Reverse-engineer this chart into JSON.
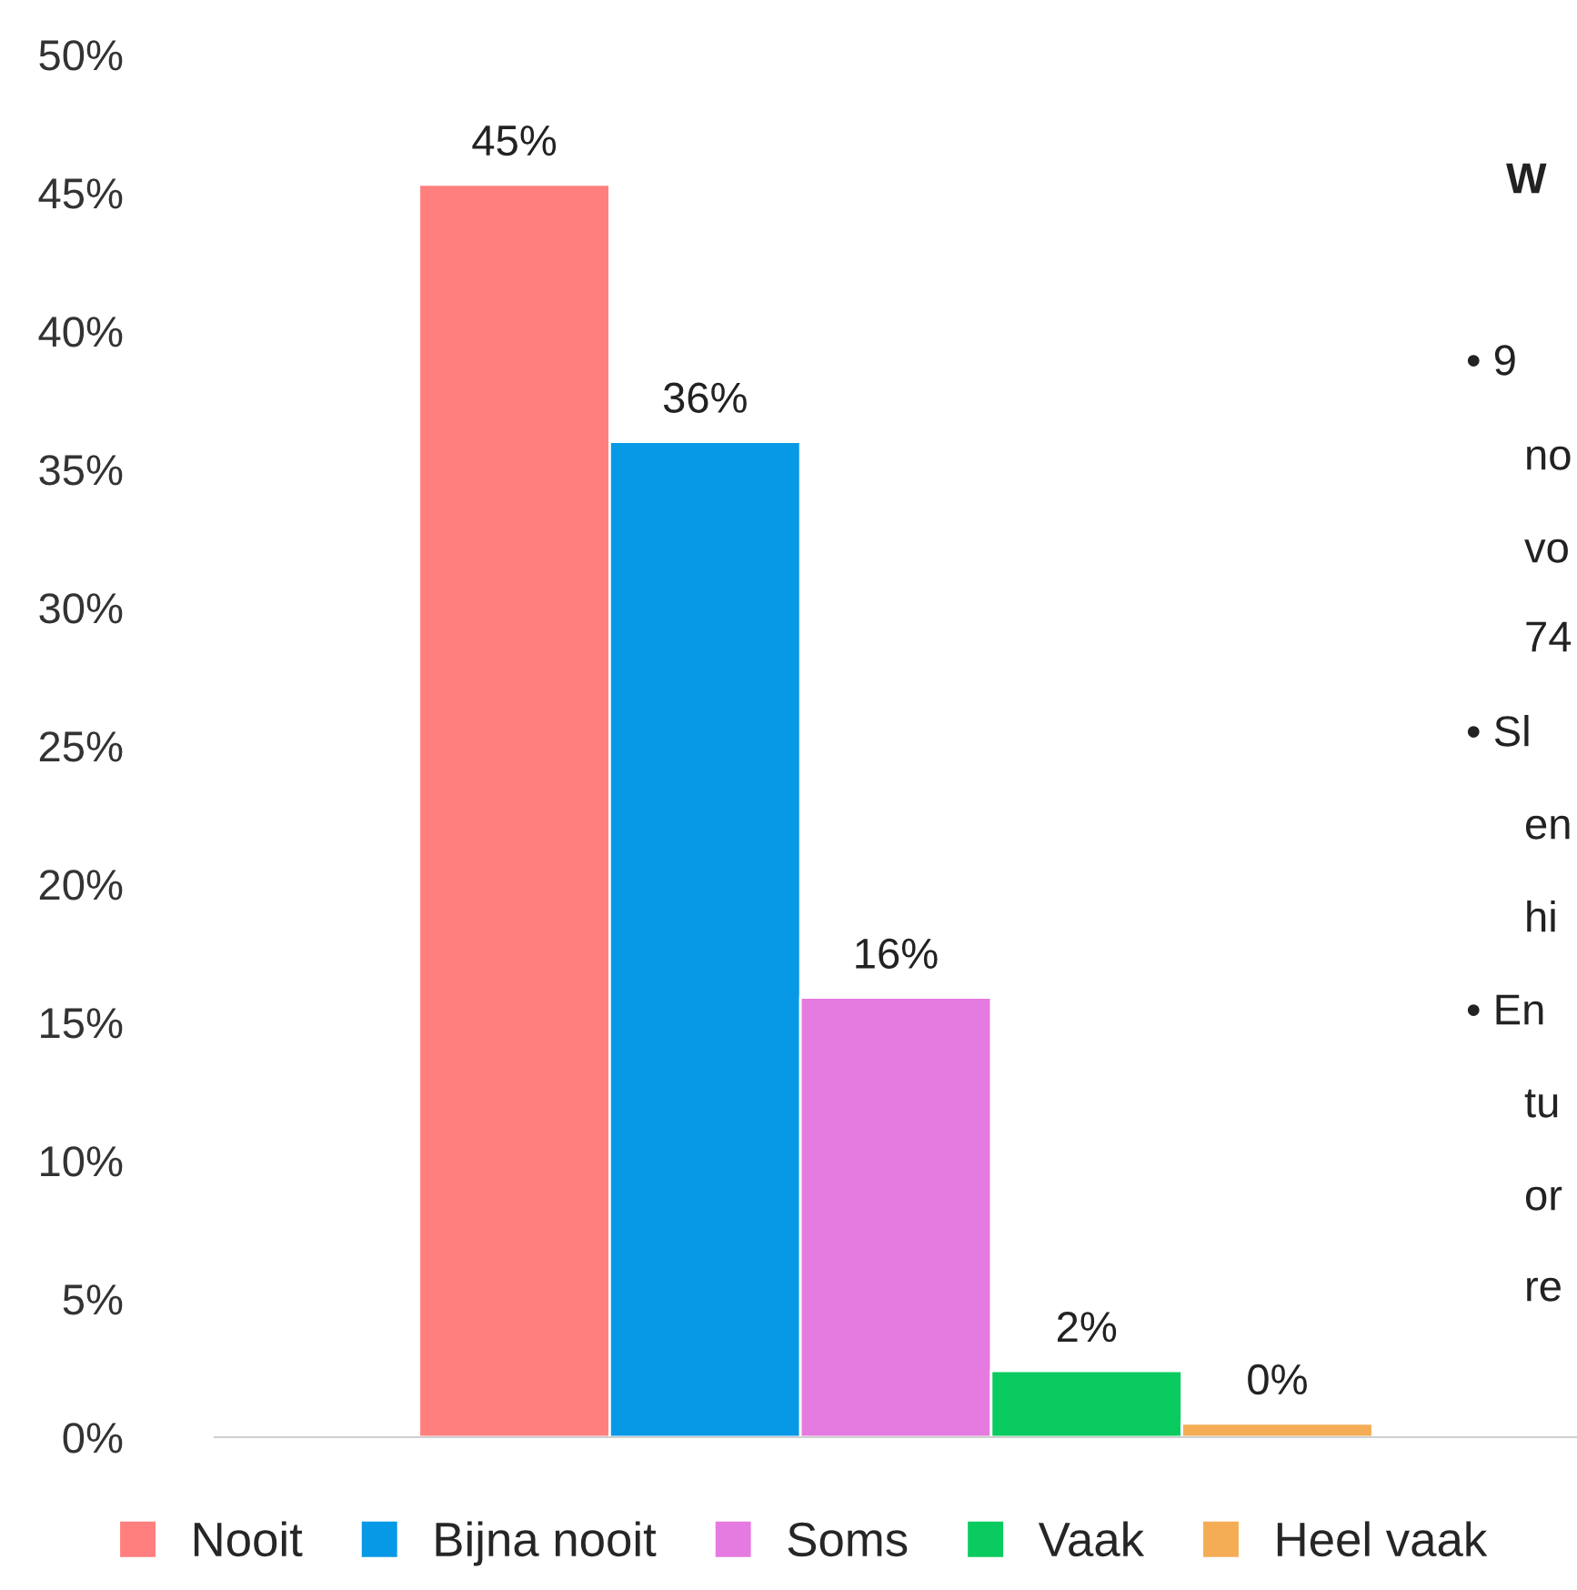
{
  "chart_data": {
    "type": "bar",
    "categories": [
      null
    ],
    "series": [
      {
        "name": "Nooit",
        "color": "#ff7f7f",
        "values": [
          45.3
        ],
        "value_labels": [
          "45%"
        ]
      },
      {
        "name": "Bijna nooit",
        "color": "#0899e6",
        "values": [
          36.0
        ],
        "value_labels": [
          "36%"
        ]
      },
      {
        "name": "Soms",
        "color": "#e57ae0",
        "values": [
          15.9
        ],
        "value_labels": [
          "16%"
        ]
      },
      {
        "name": "Vaak",
        "color": "#0acb5f",
        "values": [
          2.4
        ],
        "value_labels": [
          "2%"
        ]
      },
      {
        "name": "Heel vaak",
        "color": "#f4ad55",
        "values": [
          0.5
        ],
        "value_labels": [
          "0%"
        ]
      }
    ],
    "ylim": [
      0,
      50
    ],
    "yticks": [
      {
        "value": 0,
        "label": "0%"
      },
      {
        "value": 5,
        "label": "5%"
      },
      {
        "value": 10,
        "label": "10%"
      },
      {
        "value": 15,
        "label": "15%"
      },
      {
        "value": 20,
        "label": "20%"
      },
      {
        "value": 25,
        "label": "25%"
      },
      {
        "value": 30,
        "label": "30%"
      },
      {
        "value": 35,
        "label": "35%"
      },
      {
        "value": 40,
        "label": "40%"
      },
      {
        "value": 45,
        "label": "45%"
      },
      {
        "value": 50,
        "label": "50%"
      }
    ],
    "grid": false,
    "legend": "bottom",
    "annotations": [
      "W",
      "• 9",
      "no",
      "vo",
      "74",
      "• Sl",
      "en",
      "hi",
      "• En",
      "tu",
      "or",
      "re"
    ]
  }
}
